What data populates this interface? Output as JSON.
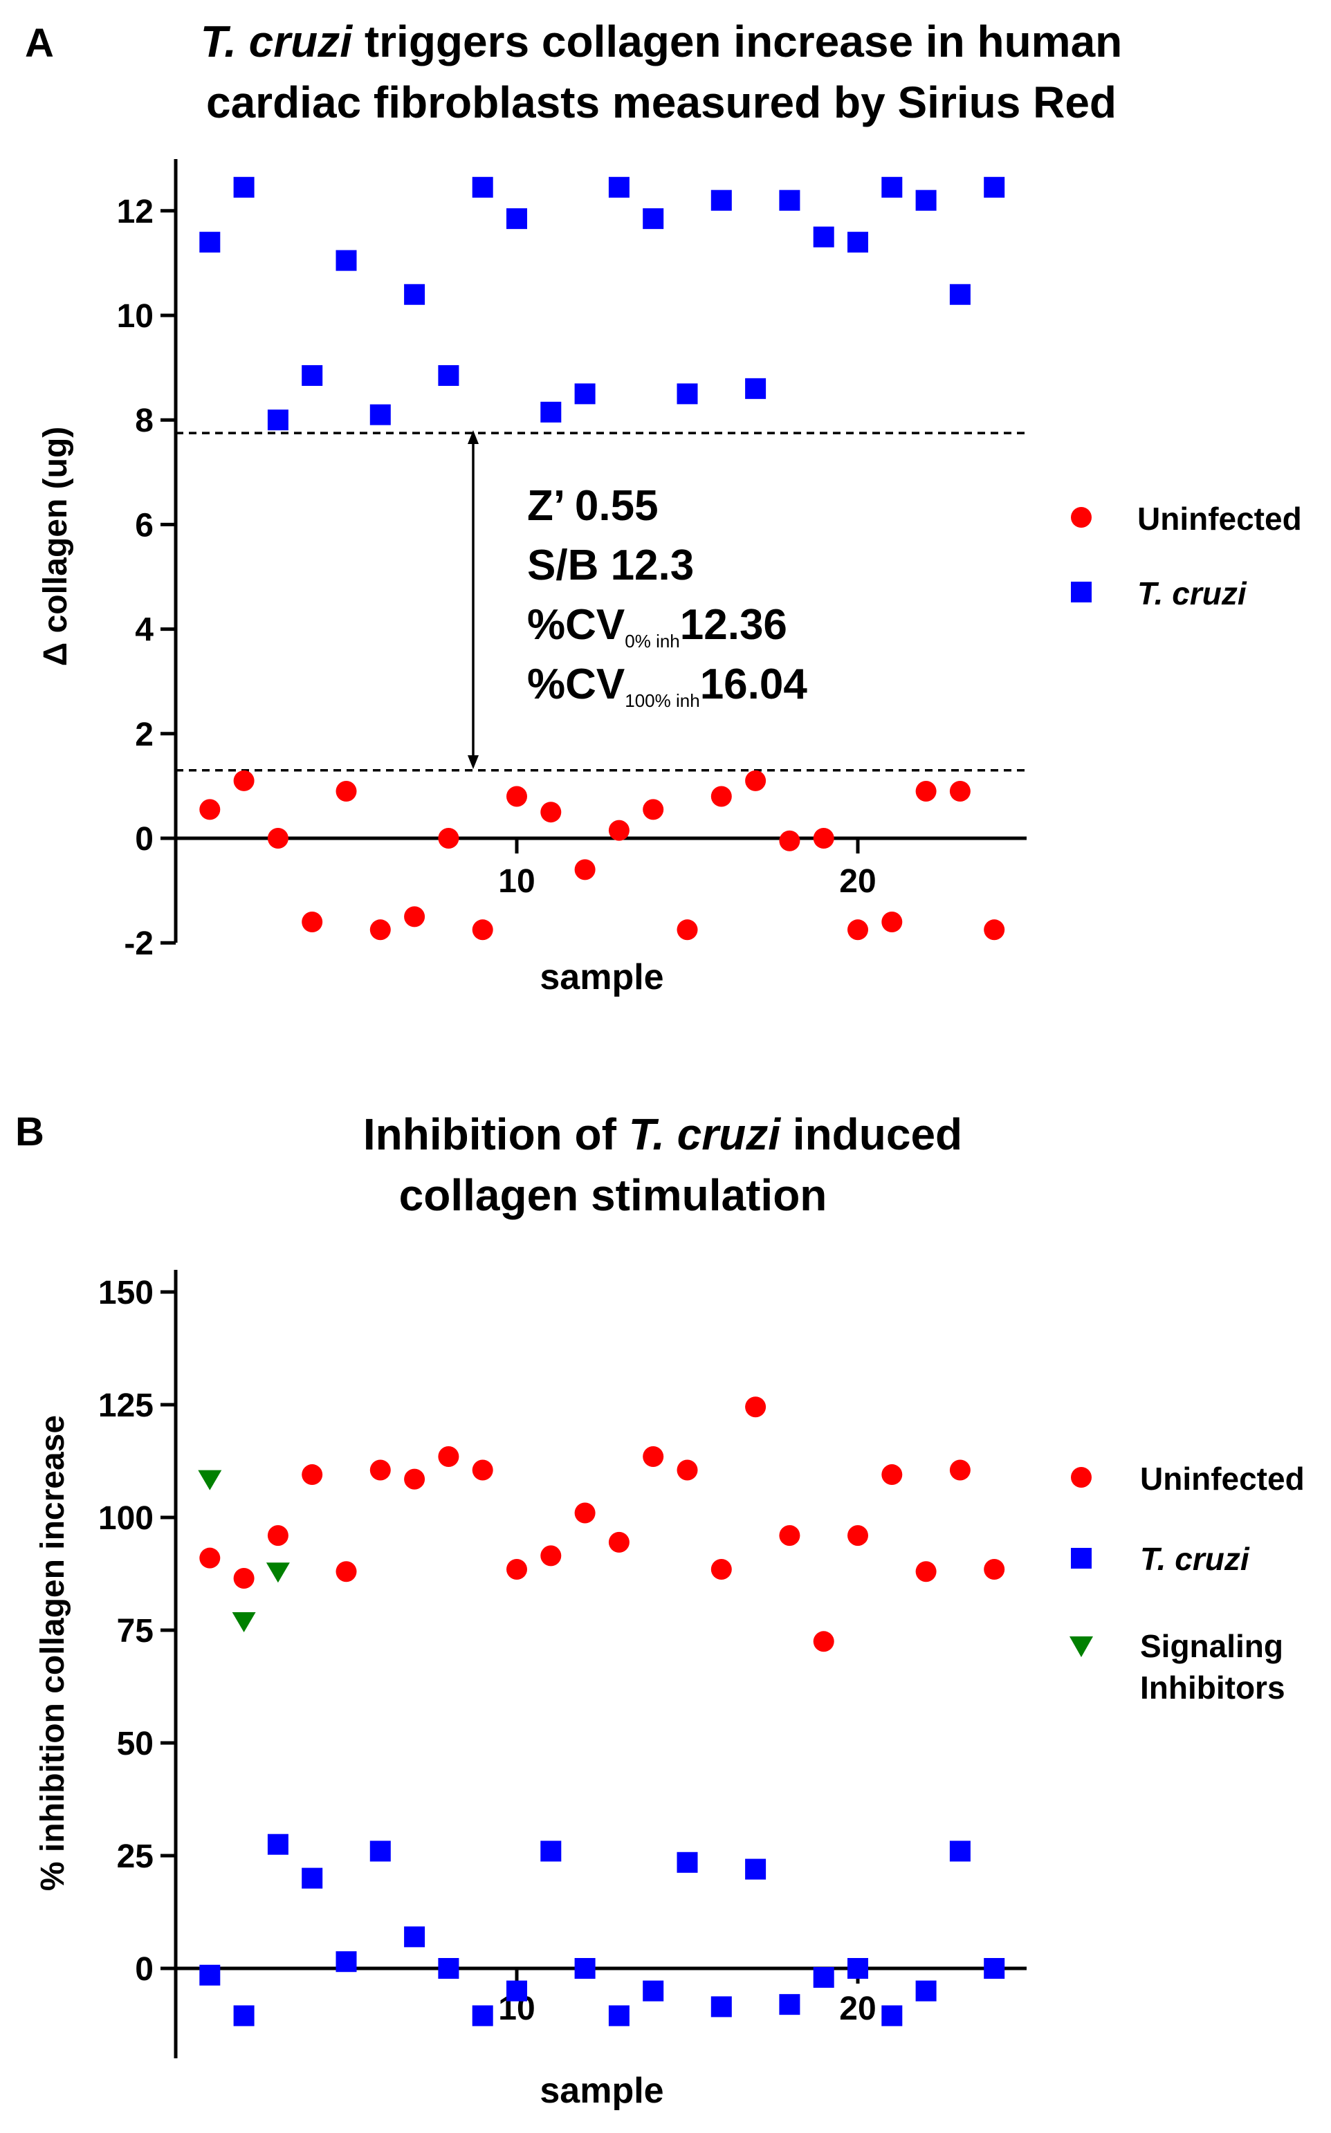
{
  "colors": {
    "uninfected": "#ff0000",
    "tcruzi": "#0000ff",
    "inhibitors": "#008000",
    "axis": "#000000"
  },
  "panel_a": {
    "letter": "A",
    "title_line1_italic": "T. cruzi",
    "title_line1_rest": " triggers collagen increase in human",
    "title_line2": "cardiac fibroblasts measured by Sirius Red",
    "annot": {
      "z": "Z’ 0.55",
      "sb": "S/B 12.3",
      "cv0_prefix": "%CV",
      "cv0_sub": "0% inh",
      "cv0_value": "12.36",
      "cv100_prefix": "%CV",
      "cv100_sub": "100% inh",
      "cv100_value": "16.04"
    }
  },
  "panel_b": {
    "letter": "B",
    "title_line1_pre": "Inhibition of ",
    "title_line1_italic": "T. cruzi",
    "title_line1_post": " induced",
    "title_line2": "collagen stimulation"
  },
  "chart_data": [
    {
      "type": "scatter",
      "title": "T. cruzi triggers collagen increase in human cardiac fibroblasts measured by Sirius Red",
      "xlabel": "sample",
      "ylabel": "Δ collagen (ug)",
      "ylim": [
        -2,
        13
      ],
      "xlim": [
        0,
        25
      ],
      "yticks": [
        -2,
        0,
        2,
        4,
        6,
        8,
        10,
        12
      ],
      "yticklabels": [
        "-2",
        "0",
        "2",
        "4",
        "6",
        "8",
        "10",
        "12"
      ],
      "xticks": [
        10,
        20
      ],
      "xticklabels": [
        "10",
        "20"
      ],
      "reference_lines": [
        7.75,
        1.3
      ],
      "legend": [
        "Uninfected",
        "T. cruzi"
      ],
      "series": [
        {
          "name": "Uninfected",
          "marker": "circle",
          "x": [
            1,
            2,
            3,
            4,
            5,
            6,
            7,
            8,
            9,
            10,
            11,
            12,
            13,
            14,
            15,
            16,
            17,
            18,
            19,
            20,
            21,
            22,
            23,
            24
          ],
          "values": [
            0.55,
            1.1,
            0.0,
            -1.6,
            0.9,
            -1.75,
            -1.5,
            0.0,
            -1.75,
            0.8,
            0.5,
            -0.6,
            0.15,
            0.55,
            -1.75,
            0.8,
            1.1,
            -0.05,
            0.0,
            -1.75,
            -1.6,
            0.9,
            0.9,
            -1.75
          ]
        },
        {
          "name": "T. cruzi",
          "marker": "square",
          "x": [
            1,
            2,
            3,
            4,
            5,
            6,
            7,
            8,
            9,
            10,
            11,
            12,
            13,
            14,
            15,
            16,
            17,
            18,
            19,
            20,
            21,
            22,
            23,
            24
          ],
          "values": [
            11.4,
            12.45,
            8.0,
            8.85,
            11.05,
            8.1,
            10.4,
            8.85,
            12.45,
            11.85,
            8.15,
            8.5,
            12.45,
            11.85,
            8.5,
            12.2,
            8.6,
            12.2,
            11.5,
            11.4,
            12.45,
            12.2,
            10.4,
            12.45
          ]
        }
      ]
    },
    {
      "type": "scatter",
      "title": "Inhibition of T. cruzi induced collagen stimulation",
      "xlabel": "sample",
      "ylabel": "% inhibition collagen increase",
      "ylim": [
        -15,
        150
      ],
      "xlim": [
        0,
        25
      ],
      "yticks": [
        0,
        25,
        50,
        75,
        100,
        125,
        150
      ],
      "yticklabels": [
        "0",
        "25",
        "50",
        "75",
        "100",
        "125",
        "150"
      ],
      "xticks": [
        10,
        20
      ],
      "xticklabels": [
        "10",
        "20"
      ],
      "legend": [
        "Uninfected",
        "T. cruzi",
        "Signaling Inhibitors"
      ],
      "series": [
        {
          "name": "Uninfected",
          "marker": "circle",
          "x": [
            1,
            2,
            3,
            4,
            5,
            6,
            7,
            8,
            9,
            10,
            11,
            12,
            13,
            14,
            15,
            16,
            17,
            18,
            19,
            20,
            21,
            22,
            23,
            24
          ],
          "values": [
            91,
            86.5,
            96,
            109.5,
            88,
            110.5,
            108.5,
            113.5,
            110.5,
            88.5,
            91.5,
            101,
            94.5,
            113.5,
            110.5,
            88.5,
            124.5,
            96,
            72.5,
            96,
            109.5,
            88,
            110.5,
            88.5
          ]
        },
        {
          "name": "T. cruzi",
          "marker": "square",
          "x": [
            1,
            2,
            3,
            4,
            5,
            6,
            7,
            8,
            9,
            10,
            11,
            12,
            13,
            14,
            15,
            16,
            17,
            18,
            19,
            20,
            21,
            22,
            23,
            24
          ],
          "values": [
            -1.5,
            -10.5,
            27.5,
            20,
            1.5,
            26,
            7,
            0,
            -10.5,
            -5,
            26,
            0,
            -10.5,
            -5,
            23.5,
            -8.5,
            22,
            -8,
            -2,
            0,
            -10.5,
            -5,
            26,
            0
          ]
        },
        {
          "name": "Signaling Inhibitors",
          "marker": "triangle-down",
          "x": [
            1,
            2,
            3
          ],
          "values": [
            108.5,
            77,
            88
          ]
        }
      ]
    }
  ]
}
